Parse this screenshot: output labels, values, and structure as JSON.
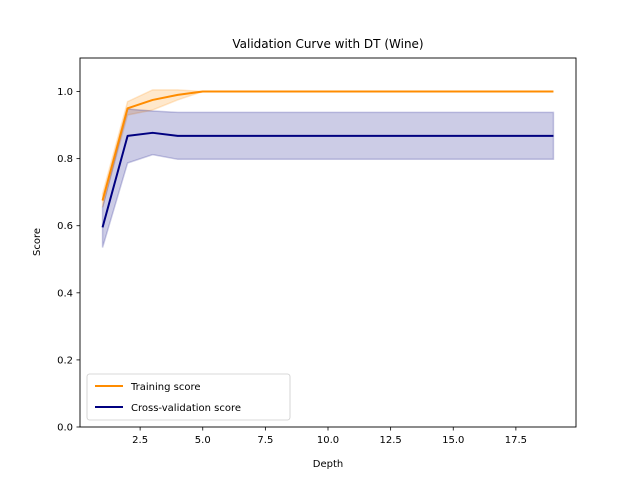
{
  "chart_data": {
    "type": "line",
    "title": "Validation Curve with DT (Wine)",
    "xlabel": "Depth",
    "ylabel": "Score",
    "xlim": [
      0.1,
      19.9
    ],
    "ylim": [
      0.0,
      1.1
    ],
    "xticks": [
      2.5,
      5.0,
      7.5,
      10.0,
      12.5,
      15.0,
      17.5
    ],
    "xtick_labels": [
      "2.5",
      "5.0",
      "7.5",
      "10.0",
      "12.5",
      "15.0",
      "17.5"
    ],
    "yticks": [
      0.0,
      0.2,
      0.4,
      0.6,
      0.8,
      1.0
    ],
    "ytick_labels": [
      "0.0",
      "0.2",
      "0.4",
      "0.6",
      "0.8",
      "1.0"
    ],
    "grid": false,
    "legend_position": "lower-left",
    "x": [
      1,
      2,
      3,
      4,
      5,
      6,
      7,
      8,
      9,
      10,
      11,
      12,
      13,
      14,
      15,
      16,
      17,
      18,
      19
    ],
    "series": [
      {
        "name": "Training score",
        "color": "#ff8c00",
        "values": [
          0.675,
          0.95,
          0.975,
          0.99,
          1.0,
          1.0,
          1.0,
          1.0,
          1.0,
          1.0,
          1.0,
          1.0,
          1.0,
          1.0,
          1.0,
          1.0,
          1.0,
          1.0,
          1.0
        ],
        "band_lower": [
          0.655,
          0.93,
          0.945,
          0.975,
          1.0,
          1.0,
          1.0,
          1.0,
          1.0,
          1.0,
          1.0,
          1.0,
          1.0,
          1.0,
          1.0,
          1.0,
          1.0,
          1.0,
          1.0
        ],
        "band_upper": [
          0.695,
          0.97,
          1.005,
          1.005,
          1.0,
          1.0,
          1.0,
          1.0,
          1.0,
          1.0,
          1.0,
          1.0,
          1.0,
          1.0,
          1.0,
          1.0,
          1.0,
          1.0,
          1.0
        ]
      },
      {
        "name": "Cross-validation score",
        "color": "#000080",
        "values": [
          0.595,
          0.868,
          0.877,
          0.868,
          0.868,
          0.868,
          0.868,
          0.868,
          0.868,
          0.868,
          0.868,
          0.868,
          0.868,
          0.868,
          0.868,
          0.868,
          0.868,
          0.868,
          0.868
        ],
        "band_lower": [
          0.535,
          0.787,
          0.812,
          0.798,
          0.798,
          0.798,
          0.798,
          0.798,
          0.798,
          0.798,
          0.798,
          0.798,
          0.798,
          0.798,
          0.798,
          0.798,
          0.798,
          0.798,
          0.798
        ],
        "band_upper": [
          0.655,
          0.948,
          0.942,
          0.938,
          0.938,
          0.938,
          0.938,
          0.938,
          0.938,
          0.938,
          0.938,
          0.938,
          0.938,
          0.938,
          0.938,
          0.938,
          0.938,
          0.938,
          0.938
        ]
      }
    ]
  }
}
